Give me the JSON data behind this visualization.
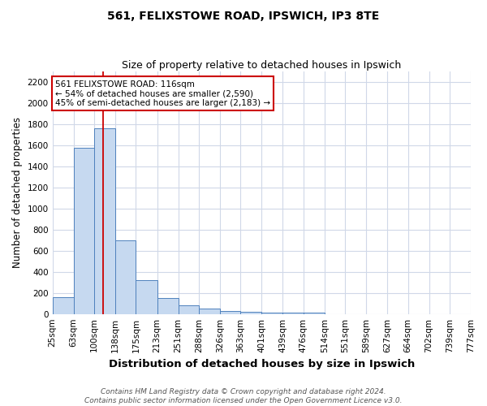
{
  "title": "561, FELIXSTOWE ROAD, IPSWICH, IP3 8TE",
  "subtitle": "Size of property relative to detached houses in Ipswich",
  "xlabel": "Distribution of detached houses by size in Ipswich",
  "ylabel": "Number of detached properties",
  "footer_line1": "Contains HM Land Registry data © Crown copyright and database right 2024.",
  "footer_line2": "Contains public sector information licensed under the Open Government Licence v3.0.",
  "bar_edges": [
    25,
    63,
    100,
    138,
    175,
    213,
    251,
    288,
    326,
    363,
    401,
    439,
    476,
    514,
    551,
    589,
    627,
    664,
    702,
    739,
    777
  ],
  "bar_heights": [
    160,
    1580,
    1760,
    700,
    320,
    155,
    85,
    50,
    25,
    20,
    15,
    10,
    15,
    0,
    0,
    0,
    0,
    0,
    0,
    0
  ],
  "bar_color": "#c6d9f0",
  "bar_edgecolor": "#4f81bd",
  "grid_color": "#d0d8e8",
  "property_x": 116,
  "property_line_color": "#cc0000",
  "annotation_line1": "561 FELIXSTOWE ROAD: 116sqm",
  "annotation_line2": "← 54% of detached houses are smaller (2,590)",
  "annotation_line3": "45% of semi-detached houses are larger (2,183) →",
  "annotation_box_edgecolor": "#cc0000",
  "annotation_box_facecolor": "#ffffff",
  "ylim": [
    0,
    2300
  ],
  "xlim_left": 25,
  "xlim_right": 777,
  "bg_color": "#ffffff",
  "title_fontsize": 10,
  "subtitle_fontsize": 9,
  "xlabel_fontsize": 9.5,
  "ylabel_fontsize": 8.5,
  "tick_fontsize": 7.5,
  "annotation_fontsize": 7.5,
  "footer_fontsize": 6.5
}
